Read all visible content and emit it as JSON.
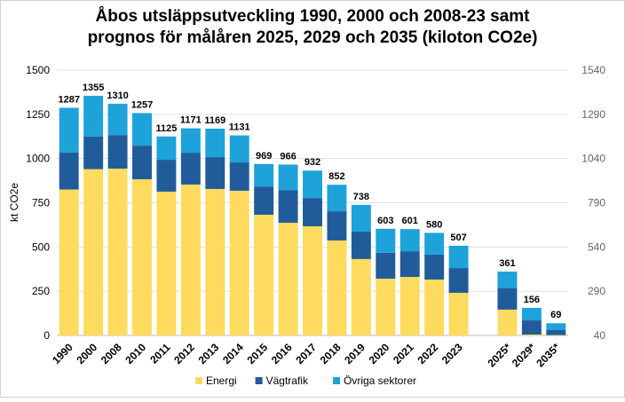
{
  "chart_data": {
    "type": "stacked_bar",
    "title": [
      "Åbos utsläppsutveckling 1990, 2000 och 2008-23 samt",
      "prognos för målåren 2025, 2029 och 2035 (kiloton CO2e)"
    ],
    "y_label": "kt CO2e",
    "categories": [
      "1990",
      "2000",
      "2008",
      "2010",
      "2011",
      "2012",
      "2013",
      "2014",
      "2015",
      "2016",
      "2017",
      "2018",
      "2019",
      "2020",
      "2021",
      "2022",
      "2023",
      null,
      "2025*",
      "2029*",
      "2035*"
    ],
    "series": [
      {
        "name": "Energi",
        "color": "#fedb5e",
        "values": [
          825,
          940,
          943,
          883,
          813,
          853,
          828,
          818,
          682,
          637,
          617,
          537,
          432,
          321,
          331,
          316,
          241,
          null,
          146,
          5,
          2
        ]
      },
      {
        "name": "Vägtrafik",
        "color": "#215c9a",
        "values": [
          210,
          185,
          190,
          190,
          180,
          180,
          180,
          160,
          160,
          185,
          160,
          165,
          155,
          146,
          145,
          141,
          140,
          null,
          120,
          80,
          30
        ]
      },
      {
        "name": "Övriga sektorer",
        "color": "#1ea2da",
        "values": [
          252,
          230,
          177,
          184,
          132,
          138,
          161,
          153,
          127,
          144,
          155,
          150,
          151,
          136,
          125,
          123,
          126,
          null,
          95,
          71,
          37
        ]
      }
    ],
    "totals": [
      1287,
      1355,
      1310,
      1257,
      1125,
      1171,
      1169,
      1131,
      969,
      966,
      932,
      852,
      738,
      603,
      601,
      580,
      507,
      null,
      361,
      156,
      69
    ],
    "ylim": [
      0,
      1500
    ],
    "yticks": [
      0,
      250,
      500,
      750,
      1000,
      1250,
      1500
    ],
    "y2lim": [
      40,
      1540
    ],
    "y2ticks": [
      40,
      290,
      540,
      790,
      1040,
      1290,
      1540
    ],
    "grid": true,
    "legend": "bottom"
  }
}
